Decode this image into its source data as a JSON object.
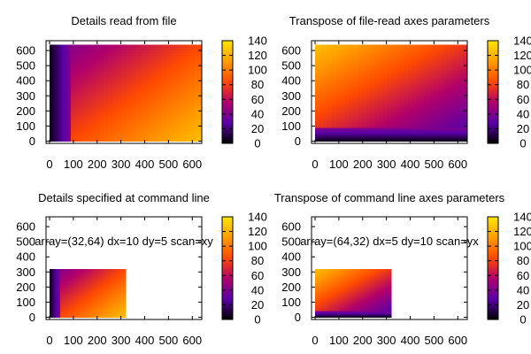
{
  "colorbar": {
    "range": [
      0,
      140
    ],
    "ticks": [
      "0",
      "20",
      "40",
      "60",
      "80",
      "100",
      "120",
      "140"
    ],
    "palette": [
      "#000000",
      "#5a00a8",
      "#b1006b",
      "#ff4a00",
      "#ff9d00",
      "#ffe600"
    ]
  },
  "chart_data": [
    {
      "type": "heatmap",
      "title": "Details read from file",
      "xticks": [
        "0",
        "100",
        "200",
        "300",
        "400",
        "500",
        "600"
      ],
      "yticks": [
        "0",
        "100",
        "200",
        "300",
        "400",
        "500",
        "600"
      ],
      "xlim": [
        -15,
        640
      ],
      "ylim": [
        -15,
        665
      ],
      "grid": false,
      "annotation": "",
      "extent": {
        "x": [
          0,
          640
        ],
        "y": [
          0,
          640
        ]
      },
      "regions": [
        {
          "x": [
            0,
            90
          ],
          "y": [
            0,
            640
          ],
          "scan": "column",
          "v": [
            3,
            42
          ]
        },
        {
          "x": [
            90,
            640
          ],
          "y": [
            0,
            640
          ],
          "scan": "diagonal",
          "v": [
            42,
            125
          ]
        }
      ]
    },
    {
      "type": "heatmap",
      "title": "Transpose of file-read axes parameters",
      "xticks": [
        "0",
        "100",
        "200",
        "300",
        "400",
        "500",
        "600"
      ],
      "yticks": [
        "0",
        "100",
        "200",
        "300",
        "400",
        "500",
        "600"
      ],
      "xlim": [
        -15,
        640
      ],
      "ylim": [
        -15,
        665
      ],
      "grid": false,
      "annotation": "",
      "extent": {
        "x": [
          0,
          640
        ],
        "y": [
          0,
          640
        ]
      },
      "regions": [
        {
          "x": [
            0,
            640
          ],
          "y": [
            0,
            90
          ],
          "scan": "row",
          "v": [
            3,
            42
          ]
        },
        {
          "x": [
            0,
            640
          ],
          "y": [
            90,
            640
          ],
          "scan": "antidiagonal",
          "v": [
            28,
            125
          ]
        }
      ]
    },
    {
      "type": "heatmap",
      "title": "Details specified at command line",
      "xticks": [
        "0",
        "100",
        "200",
        "300",
        "400",
        "500",
        "600"
      ],
      "yticks": [
        "0",
        "100",
        "200",
        "300",
        "400",
        "500",
        "600"
      ],
      "xlim": [
        -15,
        640
      ],
      "ylim": [
        -15,
        665
      ],
      "grid": false,
      "annotation": "array=(32,64) dx=10 dy=5 scan=xy",
      "extent": {
        "x": [
          0,
          320
        ],
        "y": [
          0,
          320
        ]
      },
      "regions": [
        {
          "x": [
            0,
            45
          ],
          "y": [
            0,
            320
          ],
          "scan": "column",
          "v": [
            3,
            42
          ]
        },
        {
          "x": [
            45,
            320
          ],
          "y": [
            0,
            320
          ],
          "scan": "diagonal",
          "v": [
            42,
            125
          ]
        }
      ]
    },
    {
      "type": "heatmap",
      "title": "Transpose of command line axes parameters",
      "xticks": [
        "0",
        "100",
        "200",
        "300",
        "400",
        "500",
        "600"
      ],
      "yticks": [
        "0",
        "100",
        "200",
        "300",
        "400",
        "500",
        "600"
      ],
      "xlim": [
        -15,
        640
      ],
      "ylim": [
        -15,
        665
      ],
      "grid": false,
      "annotation": "array=(64,32) dx=5 dy=10 scan=yx",
      "extent": {
        "x": [
          0,
          320
        ],
        "y": [
          0,
          320
        ]
      },
      "regions": [
        {
          "x": [
            0,
            320
          ],
          "y": [
            0,
            45
          ],
          "scan": "row",
          "v": [
            3,
            42
          ]
        },
        {
          "x": [
            0,
            320
          ],
          "y": [
            45,
            320
          ],
          "scan": "antidiagonal",
          "v": [
            28,
            125
          ]
        }
      ]
    }
  ]
}
